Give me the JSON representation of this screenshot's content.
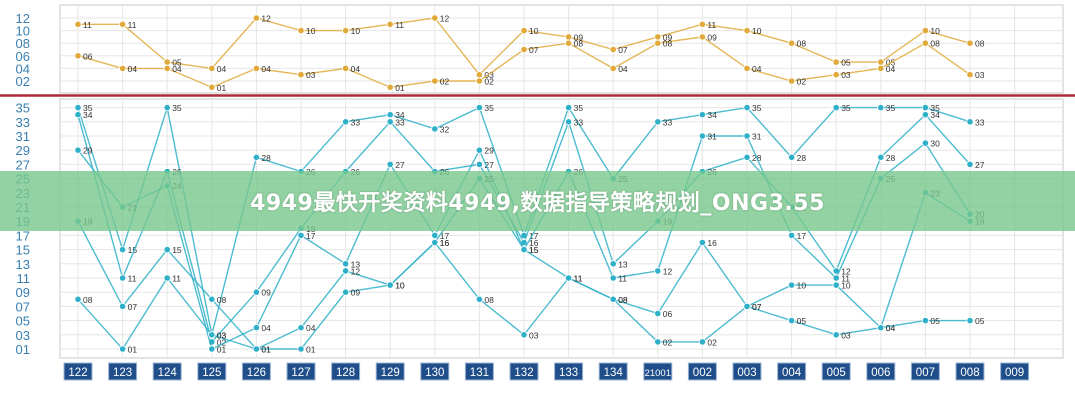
{
  "banner_text": "4949最快开奖资料4949,数据指导策略规划_ONG3.55",
  "chart_data": [
    {
      "type": "line",
      "categories": [
        "122",
        "123",
        "124",
        "125",
        "126",
        "127",
        "128",
        "129",
        "130",
        "131",
        "132",
        "133",
        "134",
        "21001",
        "002",
        "003",
        "004",
        "005",
        "006",
        "007",
        "008",
        "009"
      ],
      "yticks": [
        "02",
        "04",
        "06",
        "08",
        "10",
        "12"
      ],
      "ylim": [
        0,
        13
      ],
      "grid": true,
      "series": [
        {
          "values": [
            11,
            11,
            5,
            4,
            12,
            10,
            10,
            11,
            12,
            3,
            10,
            9,
            7,
            9,
            11,
            10,
            8,
            5,
            5,
            10,
            8,
            null
          ],
          "labels": [
            "11",
            "11",
            "05",
            "04",
            "12",
            "10",
            "10",
            "11",
            "12",
            "03",
            "10",
            "09",
            "07",
            "09",
            "11",
            "10",
            "08",
            "05",
            "05",
            "10",
            "08",
            ""
          ]
        },
        {
          "values": [
            6,
            4,
            4,
            1,
            4,
            3,
            4,
            1,
            2,
            2,
            7,
            8,
            4,
            8,
            9,
            4,
            2,
            3,
            4,
            8,
            3,
            null
          ],
          "labels": [
            "06",
            "04",
            "04",
            "01",
            "04",
            "03",
            "04",
            "01",
            "02",
            "02",
            "07",
            "08",
            "04",
            "08",
            "09",
            "04",
            "02",
            "03",
            "04",
            "08",
            "03",
            ""
          ]
        }
      ],
      "color": "#e0a93a"
    },
    {
      "type": "line",
      "categories": [
        "122",
        "123",
        "124",
        "125",
        "126",
        "127",
        "128",
        "129",
        "130",
        "131",
        "132",
        "133",
        "134",
        "21001",
        "002",
        "003",
        "004",
        "005",
        "006",
        "007",
        "008",
        "009"
      ],
      "yticks": [
        "01",
        "03",
        "05",
        "07",
        "09",
        "11",
        "13",
        "15",
        "17",
        "19",
        "21",
        "23",
        "25",
        "27",
        "29",
        "31",
        "33",
        "35"
      ],
      "ylim": [
        0,
        36
      ],
      "grid": true,
      "series": [
        {
          "values": [
            35,
            15,
            35,
            3,
            28,
            26,
            33,
            34,
            32,
            35,
            17,
            35,
            25,
            33,
            34,
            35,
            28,
            35,
            35,
            35,
            33,
            null
          ],
          "labels": [
            "35",
            "15",
            "35",
            "03",
            "28",
            "26",
            "33",
            "34",
            "32",
            "35",
            "17",
            "35",
            "25",
            "33",
            "34",
            "35",
            "28",
            "35",
            "35",
            "35",
            "33",
            ""
          ]
        },
        {
          "values": [
            34,
            11,
            26,
            2,
            9,
            18,
            26,
            33,
            26,
            27,
            16,
            33,
            13,
            19,
            26,
            28,
            21,
            12,
            28,
            34,
            27,
            null
          ],
          "labels": [
            "34",
            "11",
            "26",
            "02",
            "09",
            "18",
            "26",
            "33",
            "26",
            "27",
            "16",
            "33",
            "13",
            "19",
            "26",
            "28",
            "21",
            "12",
            "28",
            "34",
            "27",
            ""
          ]
        },
        {
          "values": [
            29,
            21,
            24,
            1,
            4,
            17,
            13,
            27,
            17,
            29,
            15,
            26,
            11,
            12,
            31,
            31,
            17,
            11,
            25,
            30,
            20,
            null
          ],
          "labels": [
            "29",
            "21",
            "24",
            "01",
            "04",
            "17",
            "13",
            "27",
            "17",
            "29",
            "15",
            "26",
            "11",
            "12",
            "31",
            "31",
            "17",
            "11",
            "25",
            "30",
            "20",
            ""
          ]
        },
        {
          "values": [
            19,
            7,
            15,
            8,
            1,
            4,
            12,
            10,
            16,
            25,
            15,
            11,
            8,
            6,
            16,
            7,
            10,
            10,
            4,
            23,
            19,
            null
          ],
          "labels": [
            "19",
            "07",
            "15",
            "08",
            "01",
            "04",
            "12",
            "10",
            "16",
            "25",
            "15",
            "11",
            "08",
            "06",
            "16",
            "07",
            "10",
            "10",
            "04",
            "23",
            "19",
            ""
          ]
        },
        {
          "values": [
            8,
            1,
            11,
            3,
            1,
            1,
            9,
            10,
            16,
            8,
            3,
            11,
            8,
            2,
            2,
            7,
            5,
            3,
            4,
            5,
            5,
            null
          ],
          "labels": [
            "08",
            "01",
            "11",
            "03",
            "01",
            "01",
            "09",
            "10",
            "16",
            "08",
            "03",
            "11",
            "08",
            "02",
            "02",
            "07",
            "05",
            "03",
            "04",
            "05",
            "05",
            ""
          ]
        }
      ],
      "color": "#2eb0c8"
    }
  ]
}
